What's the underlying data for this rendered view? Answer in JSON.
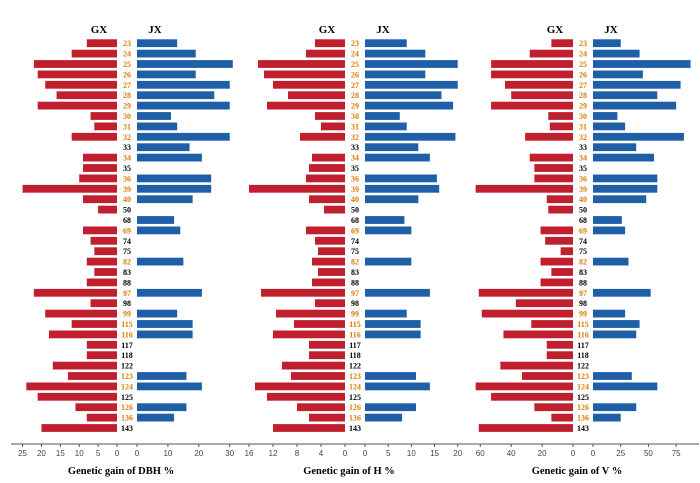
{
  "chart_data": [
    {
      "type": "bar",
      "title": "Genetic gain of DBH %",
      "xlabel": "Genetic gain of DBH %",
      "group_labels": [
        "GX",
        "JX"
      ],
      "categories": [
        "23",
        "24",
        "25",
        "26",
        "27",
        "28",
        "29",
        "30",
        "31",
        "32",
        "33",
        "34",
        "35",
        "36",
        "39",
        "40",
        "50",
        "68",
        "69",
        "74",
        "75",
        "82",
        "83",
        "88",
        "97",
        "98",
        "99",
        "115",
        "116",
        "117",
        "118",
        "122",
        "123",
        "124",
        "125",
        "126",
        "136",
        "143"
      ],
      "highlighted_categories": [
        "23",
        "24",
        "25",
        "26",
        "27",
        "28",
        "29",
        "30",
        "31",
        "32",
        "34",
        "36",
        "39",
        "40",
        "69",
        "82",
        "97",
        "99",
        "115",
        "116",
        "123",
        "124",
        "126",
        "136"
      ],
      "series": [
        {
          "name": "GX",
          "color": "#c0202e",
          "values": [
            8,
            12,
            22,
            21,
            19,
            16,
            21,
            7,
            6,
            12,
            0,
            9,
            9,
            10,
            25,
            9,
            5,
            0,
            9,
            7,
            6,
            8,
            6,
            8,
            22,
            7,
            19,
            12,
            18,
            8,
            8,
            17,
            13,
            24,
            21,
            11,
            8,
            20
          ]
        },
        {
          "name": "JX",
          "color": "#1f5fa8",
          "values": [
            13,
            19,
            31,
            19,
            30,
            25,
            30,
            11,
            13,
            30,
            17,
            21,
            0,
            24,
            24,
            18,
            0,
            12,
            14,
            0,
            0,
            15,
            0,
            0,
            21,
            0,
            13,
            18,
            18,
            0,
            0,
            0,
            16,
            21,
            0,
            16,
            12,
            0
          ]
        }
      ],
      "left_ticks": [
        25,
        20,
        15,
        10,
        5,
        0
      ],
      "right_ticks": [
        0,
        10,
        20,
        30
      ],
      "left_max": 27,
      "right_max": 33
    },
    {
      "type": "bar",
      "title": "Genetic gain of H %",
      "xlabel": "Genetic gain of H %",
      "group_labels": [
        "GX",
        "JX"
      ],
      "categories": [
        "23",
        "24",
        "25",
        "26",
        "27",
        "28",
        "29",
        "30",
        "31",
        "32",
        "33",
        "34",
        "35",
        "36",
        "39",
        "40",
        "50",
        "68",
        "69",
        "74",
        "75",
        "82",
        "83",
        "88",
        "97",
        "98",
        "99",
        "115",
        "116",
        "117",
        "118",
        "122",
        "123",
        "124",
        "125",
        "126",
        "136",
        "143"
      ],
      "highlighted_categories": [
        "23",
        "24",
        "25",
        "26",
        "27",
        "28",
        "29",
        "30",
        "31",
        "32",
        "34",
        "36",
        "39",
        "40",
        "69",
        "82",
        "97",
        "99",
        "115",
        "116",
        "123",
        "124",
        "126",
        "136"
      ],
      "series": [
        {
          "name": "GX",
          "color": "#c0202e",
          "values": [
            5,
            6.5,
            14.5,
            13.5,
            12,
            9.5,
            13,
            5,
            4,
            7.5,
            0,
            5.5,
            6,
            6.5,
            16,
            6,
            3.5,
            0,
            6.5,
            5,
            4.5,
            5.5,
            4.5,
            5.5,
            14,
            5,
            11.5,
            8.5,
            12,
            6,
            6,
            10.5,
            9,
            15,
            13,
            8,
            6,
            12
          ]
        },
        {
          "name": "JX",
          "color": "#1f5fa8",
          "values": [
            9,
            13,
            20,
            13,
            20,
            16.5,
            19,
            7.5,
            9,
            19.5,
            11.5,
            14,
            0,
            15.5,
            16,
            11.5,
            0,
            8.5,
            10,
            0,
            0,
            10,
            0,
            0,
            14,
            0,
            9,
            12,
            12,
            0,
            0,
            0,
            11,
            14,
            0,
            11,
            8,
            0
          ]
        }
      ],
      "left_ticks": [
        16,
        12,
        8,
        4,
        0
      ],
      "right_ticks": [
        0,
        5,
        10,
        15,
        20
      ],
      "left_max": 17,
      "right_max": 22
    },
    {
      "type": "bar",
      "title": "Genetic gain of V %",
      "xlabel": "Genetic gain of V %",
      "group_labels": [
        "GX",
        "JX"
      ],
      "categories": [
        "23",
        "24",
        "25",
        "26",
        "27",
        "28",
        "29",
        "30",
        "31",
        "32",
        "33",
        "34",
        "35",
        "36",
        "39",
        "40",
        "50",
        "68",
        "69",
        "74",
        "75",
        "82",
        "83",
        "88",
        "97",
        "98",
        "99",
        "115",
        "116",
        "117",
        "118",
        "122",
        "123",
        "124",
        "125",
        "126",
        "136",
        "143"
      ],
      "highlighted_categories": [
        "23",
        "24",
        "25",
        "26",
        "27",
        "28",
        "29",
        "30",
        "31",
        "32",
        "34",
        "36",
        "39",
        "40",
        "69",
        "82",
        "97",
        "99",
        "115",
        "116",
        "123",
        "124",
        "126",
        "136"
      ],
      "series": [
        {
          "name": "GX",
          "color": "#c0202e",
          "values": [
            14,
            28,
            53,
            53,
            44,
            40,
            53,
            16,
            15,
            31,
            0,
            28,
            25,
            25,
            63,
            17,
            16,
            0,
            21,
            18,
            8,
            21,
            14,
            21,
            61,
            37,
            59,
            27,
            45,
            17,
            17,
            47,
            33,
            63,
            53,
            25,
            14,
            61
          ]
        },
        {
          "name": "JX",
          "color": "#1f5fa8",
          "values": [
            25,
            42,
            88,
            45,
            79,
            58,
            75,
            22,
            29,
            82,
            39,
            55,
            0,
            58,
            58,
            48,
            0,
            26,
            29,
            0,
            0,
            32,
            0,
            0,
            52,
            0,
            29,
            42,
            39,
            0,
            0,
            0,
            35,
            58,
            0,
            39,
            25,
            0
          ]
        }
      ],
      "left_ticks": [
        60,
        40,
        20,
        0
      ],
      "right_ticks": [
        0,
        25,
        50,
        75
      ],
      "left_max": 66,
      "right_max": 92
    }
  ],
  "colors": {
    "gx": "#c0202e",
    "jx": "#1f5fa8",
    "highlight": "#e07a0a",
    "plain": "#000000",
    "axis": "#555555"
  }
}
